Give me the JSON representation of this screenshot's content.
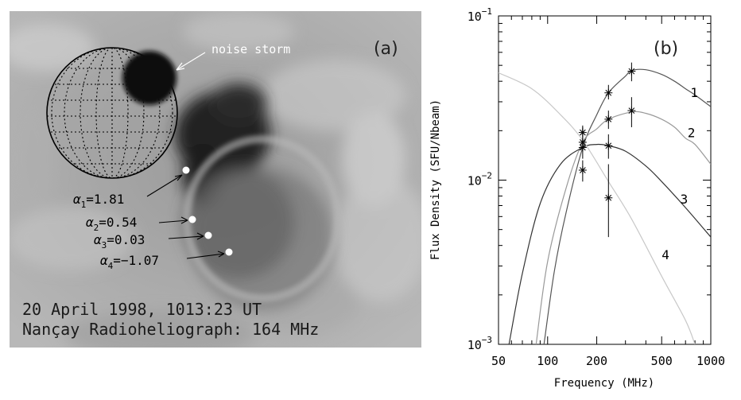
{
  "panel_a": {
    "label": "(a)",
    "noise_storm_label": "noise storm",
    "caption_line1": "20 April 1998, 1013:23 UT",
    "caption_line2": "Nançay Radioheliograph: 164 MHz",
    "alpha_labels": [
      {
        "sym": "α",
        "sub": "1",
        "val": "=1.81"
      },
      {
        "sym": "α",
        "sub": "2",
        "val": "=0.54"
      },
      {
        "sym": "α",
        "sub": "3",
        "val": "=0.03"
      },
      {
        "sym": "α",
        "sub": "4",
        "val": "=−1.07"
      }
    ]
  },
  "panel_b": {
    "label": "(b)"
  },
  "chart_data": {
    "type": "line",
    "xlabel": "Frequency (MHz)",
    "ylabel": "Flux Density (SFU/Nbeam)",
    "xscale": "log",
    "yscale": "log",
    "xlim": [
      50,
      1000
    ],
    "ylim": [
      0.001,
      0.1
    ],
    "x_ticks": [
      50,
      100,
      200,
      500,
      1000
    ],
    "x_tick_labels": [
      "50",
      "100",
      "200",
      "500",
      "1000"
    ],
    "y_ticks": [
      0.001,
      0.01,
      0.1
    ],
    "y_tick_labels": [
      {
        "base": "10",
        "exp": "−3"
      },
      {
        "base": "10",
        "exp": "−2"
      },
      {
        "base": "10",
        "exp": "−1"
      }
    ],
    "series": [
      {
        "name": "1",
        "color": "#555555",
        "curve": [
          [
            95,
            0.001
          ],
          [
            110,
            0.0028
          ],
          [
            130,
            0.0064
          ],
          [
            164,
            0.0158
          ],
          [
            200,
            0.025
          ],
          [
            236,
            0.034
          ],
          [
            300,
            0.043
          ],
          [
            327,
            0.0465
          ],
          [
            400,
            0.047
          ],
          [
            500,
            0.044
          ],
          [
            600,
            0.04
          ],
          [
            700,
            0.036
          ],
          [
            800,
            0.033
          ],
          [
            1000,
            0.028
          ]
        ],
        "points": [
          {
            "x": 164,
            "y": 0.0158
          },
          {
            "x": 236,
            "y": 0.034,
            "err": [
              0.031,
              0.038
            ]
          },
          {
            "x": 327,
            "y": 0.046,
            "err": [
              0.04,
              0.052
            ]
          }
        ]
      },
      {
        "name": "2",
        "color": "#999999",
        "curve": [
          [
            85,
            0.001
          ],
          [
            100,
            0.0032
          ],
          [
            130,
            0.009
          ],
          [
            164,
            0.017
          ],
          [
            200,
            0.0205
          ],
          [
            236,
            0.0235
          ],
          [
            327,
            0.026
          ],
          [
            400,
            0.0255
          ],
          [
            500,
            0.0235
          ],
          [
            600,
            0.021
          ],
          [
            700,
            0.018
          ],
          [
            800,
            0.0165
          ],
          [
            1000,
            0.0125
          ]
        ],
        "points": [
          {
            "x": 164,
            "y": 0.017,
            "err": [
              0.0135,
              0.021
            ]
          },
          {
            "x": 236,
            "y": 0.0235,
            "err": [
              0.0205,
              0.0265
            ]
          },
          {
            "x": 327,
            "y": 0.0265,
            "err": [
              0.021,
              0.032
            ]
          }
        ]
      },
      {
        "name": "3",
        "color": "#333333",
        "curve": [
          [
            58,
            0.001
          ],
          [
            70,
            0.0027
          ],
          [
            90,
            0.0072
          ],
          [
            120,
            0.0125
          ],
          [
            164,
            0.0158
          ],
          [
            200,
            0.0165
          ],
          [
            236,
            0.0162
          ],
          [
            300,
            0.015
          ],
          [
            400,
            0.0122
          ],
          [
            500,
            0.0098
          ],
          [
            700,
            0.0068
          ],
          [
            1000,
            0.0045
          ]
        ],
        "points": [
          {
            "x": 164,
            "y": 0.0115,
            "err": [
              0.0098,
              0.0132
            ]
          },
          {
            "x": 236,
            "y": 0.0162,
            "err": [
              0.0135,
              0.019
            ]
          }
        ]
      },
      {
        "name": "4",
        "color": "#c8c8c8",
        "curve": [
          [
            50,
            0.045
          ],
          [
            80,
            0.036
          ],
          [
            120,
            0.025
          ],
          [
            164,
            0.0175
          ],
          [
            236,
            0.0098
          ],
          [
            327,
            0.0058
          ],
          [
            500,
            0.0026
          ],
          [
            700,
            0.0014
          ],
          [
            800,
            0.001
          ]
        ],
        "points": [
          {
            "x": 236,
            "y": 0.0078,
            "err": [
              0.0045,
              0.0125
            ]
          },
          {
            "x": 164,
            "y": 0.0195,
            "err": [
              0.0165,
              0.0215
            ]
          }
        ]
      }
    ],
    "curve_labels": [
      {
        "text": "1",
        "x": 750,
        "y": 0.032
      },
      {
        "text": "2",
        "x": 720,
        "y": 0.0183
      },
      {
        "text": "3",
        "x": 650,
        "y": 0.0072
      },
      {
        "text": "4",
        "x": 500,
        "y": 0.0033
      }
    ]
  }
}
